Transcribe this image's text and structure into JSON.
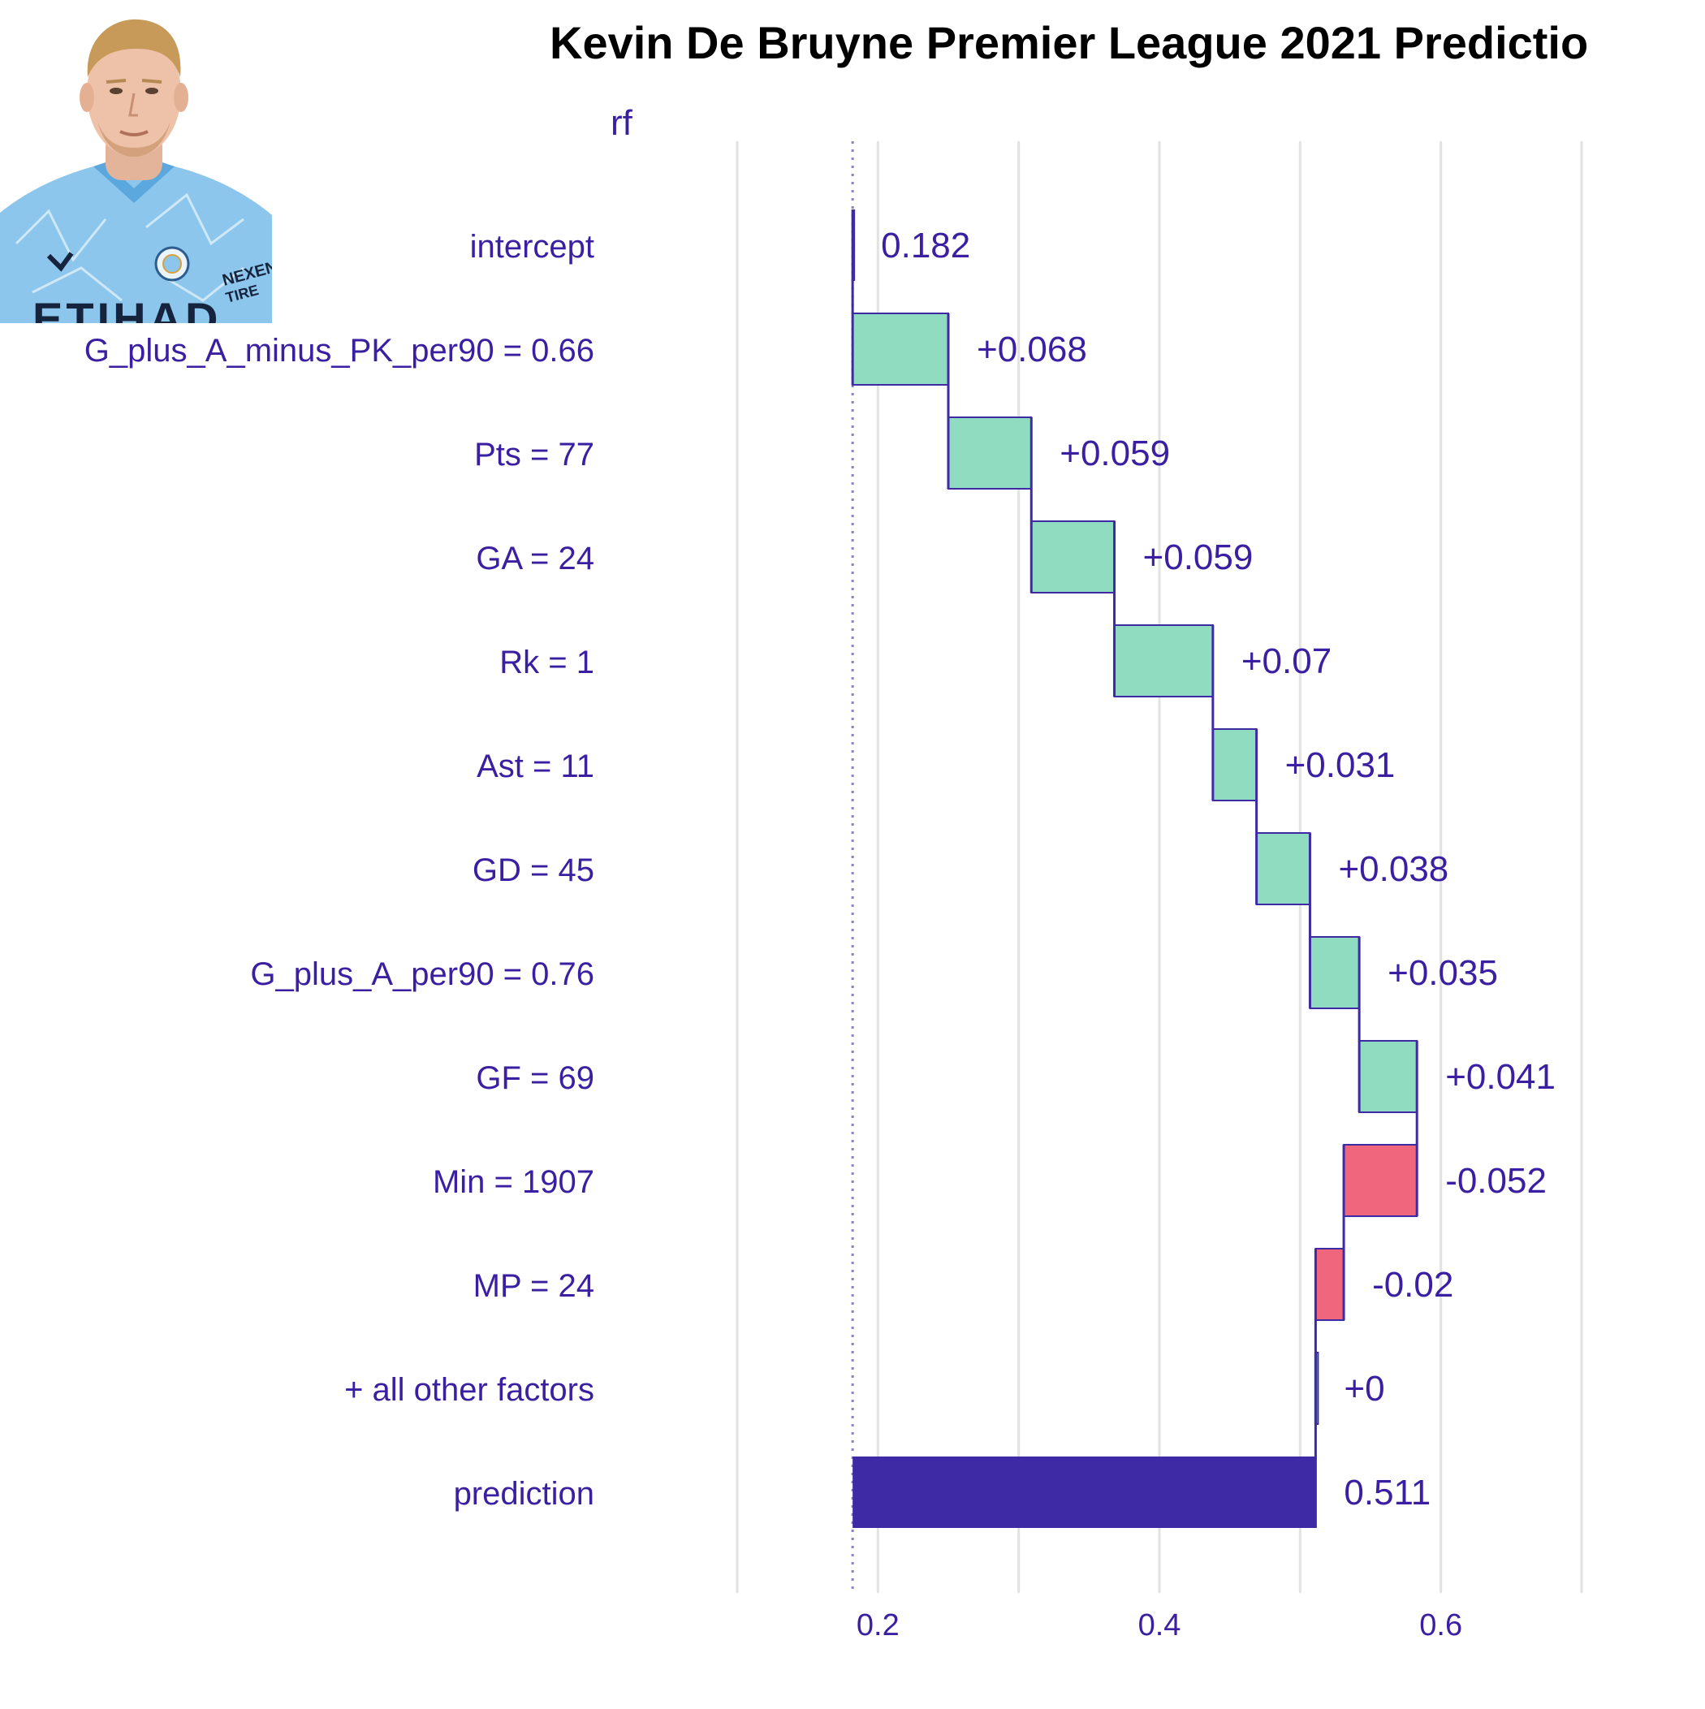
{
  "chart_data": {
    "type": "bar",
    "subtype": "waterfall (break-down)",
    "title": "Kevin De Bruyne Premier League 2021 Predictio",
    "subtitle": "rf",
    "xlabel": "",
    "ylabel": "",
    "xlim": [
      0.1,
      0.7
    ],
    "x_ticks": [
      0.2,
      0.4,
      0.6
    ],
    "x_tick_labels": [
      "0.2",
      "0.4",
      "0.6"
    ],
    "grid": "vertical",
    "baseline": 0.182,
    "categories": [
      "intercept",
      "G_plus_A_minus_PK_per90 = 0.66",
      "Pts = 77",
      "GA = 24",
      "Rk = 1",
      "Ast = 11",
      "GD = 45",
      "G_plus_A_per90 = 0.76",
      "GF = 69",
      "Min = 1907",
      "MP = 24",
      "+ all other factors",
      "prediction"
    ],
    "values": [
      0.182,
      0.068,
      0.059,
      0.059,
      0.07,
      0.031,
      0.038,
      0.035,
      0.041,
      -0.052,
      -0.02,
      0.0,
      0.511
    ],
    "value_labels": [
      "0.182",
      "+0.068",
      "+0.059",
      "+0.059",
      "+0.07",
      "+0.031",
      "+0.038",
      "+0.035",
      "+0.041",
      "-0.052",
      "-0.02",
      "+0",
      "0.511"
    ],
    "kinds": [
      "intercept",
      "contribution",
      "contribution",
      "contribution",
      "contribution",
      "contribution",
      "contribution",
      "contribution",
      "contribution",
      "contribution",
      "contribution",
      "contribution",
      "prediction"
    ],
    "colors": {
      "positive": "#8fdcc0",
      "negative": "#f0677d",
      "prediction": "#3f2aa6",
      "text": "#3a1fa3",
      "grid": "#e2e2e2",
      "title": "#000000"
    }
  },
  "photo": {
    "jersey_text": "ETIHAD",
    "sponsor_text": [
      "NEXEN",
      "TIRE"
    ]
  }
}
